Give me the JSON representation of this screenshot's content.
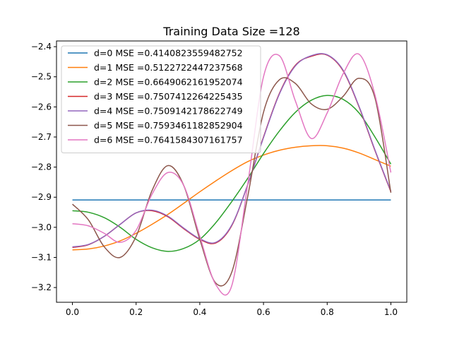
{
  "chart_data": {
    "type": "line",
    "title": "Training Data Size =128",
    "xlabel": "",
    "ylabel": "",
    "xlim": [
      -0.05,
      1.05
    ],
    "ylim": [
      -3.249,
      -2.381
    ],
    "xticks": [
      0.0,
      0.2,
      0.4,
      0.6,
      0.8,
      1.0
    ],
    "xtick_labels": [
      "0.0",
      "0.2",
      "0.4",
      "0.6",
      "0.8",
      "1.0"
    ],
    "yticks": [
      -3.2,
      -3.1,
      -3.0,
      -2.9,
      -2.8,
      -2.7,
      -2.6,
      -2.5,
      -2.4
    ],
    "ytick_labels": [
      "−3.2",
      "−3.1",
      "−3.0",
      "−2.9",
      "−2.8",
      "−2.7",
      "−2.6",
      "−2.5",
      "−2.4"
    ],
    "grid": false,
    "legend_position": "upper-left",
    "x": [
      0.0,
      0.05,
      0.1,
      0.15,
      0.2,
      0.25,
      0.3,
      0.35,
      0.4,
      0.45,
      0.5,
      0.55,
      0.6,
      0.65,
      0.7,
      0.75,
      0.8,
      0.85,
      0.9,
      0.95,
      1.0
    ],
    "series": [
      {
        "name": "d=0 MSE =0.4140823559482752",
        "color": "#1f77b4",
        "values": [
          -2.909,
          -2.909,
          -2.909,
          -2.909,
          -2.909,
          -2.909,
          -2.909,
          -2.909,
          -2.909,
          -2.909,
          -2.909,
          -2.909,
          -2.909,
          -2.909,
          -2.909,
          -2.909,
          -2.909,
          -2.909,
          -2.909,
          -2.909,
          -2.909
        ]
      },
      {
        "name": "d=1 MSE =0.5122722447237568",
        "color": "#ff7f0e",
        "values": [
          -3.075,
          -3.072,
          -3.062,
          -3.045,
          -3.02,
          -2.99,
          -2.957,
          -2.92,
          -2.882,
          -2.846,
          -2.812,
          -2.782,
          -2.76,
          -2.744,
          -2.734,
          -2.729,
          -2.729,
          -2.737,
          -2.753,
          -2.775,
          -2.797
        ]
      },
      {
        "name": "d=2 MSE =0.6649062161952074",
        "color": "#2ca02c",
        "values": [
          -2.945,
          -2.95,
          -2.968,
          -3.0,
          -3.04,
          -3.068,
          -3.08,
          -3.07,
          -3.04,
          -2.985,
          -2.915,
          -2.838,
          -2.755,
          -2.68,
          -2.618,
          -2.578,
          -2.562,
          -2.575,
          -2.62,
          -2.7,
          -2.79
        ]
      },
      {
        "name": "d=3 MSE =0.7507412264225435",
        "color": "#d62728",
        "values": [
          -3.067,
          -3.058,
          -3.03,
          -2.99,
          -2.952,
          -2.945,
          -2.965,
          -3.005,
          -3.04,
          -3.052,
          -2.995,
          -2.86,
          -2.7,
          -2.555,
          -2.462,
          -2.432,
          -2.428,
          -2.48,
          -2.6,
          -2.745,
          -2.882
        ]
      },
      {
        "name": "d=4 MSE =0.7509142178622749",
        "color": "#9467bd",
        "values": [
          -3.065,
          -3.057,
          -3.03,
          -2.99,
          -2.952,
          -2.943,
          -2.963,
          -3.003,
          -3.038,
          -3.05,
          -2.993,
          -2.86,
          -2.702,
          -2.557,
          -2.464,
          -2.43,
          -2.427,
          -2.478,
          -2.598,
          -2.743,
          -2.88
        ]
      },
      {
        "name": "d=5 MSE =0.7593461182852904",
        "color": "#8c564b",
        "values": [
          -2.923,
          -2.975,
          -3.065,
          -3.1,
          -3.03,
          -2.878,
          -2.795,
          -2.862,
          -3.04,
          -3.185,
          -3.15,
          -2.9,
          -2.618,
          -2.51,
          -2.522,
          -2.59,
          -2.608,
          -2.565,
          -2.505,
          -2.57,
          -2.885
        ]
      },
      {
        "name": "d=6 MSE =0.7641584307161757",
        "color": "#e377c2",
        "values": [
          -2.988,
          -2.995,
          -3.02,
          -3.05,
          -3.01,
          -2.89,
          -2.818,
          -2.862,
          -3.03,
          -3.19,
          -3.195,
          -2.86,
          -2.5,
          -2.43,
          -2.58,
          -2.705,
          -2.62,
          -2.49,
          -2.425,
          -2.56,
          -2.818
        ]
      }
    ]
  }
}
